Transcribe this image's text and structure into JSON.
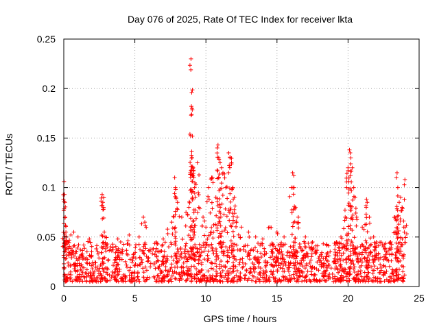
{
  "chart_data": {
    "type": "scatter",
    "title": "Day 076 of 2025, Rate Of TEC Index for receiver lkta",
    "xlabel": "GPS time / hours",
    "ylabel": "ROTI / TECUs",
    "xlim": [
      0,
      25
    ],
    "ylim": [
      0,
      0.25
    ],
    "x_ticks": [
      0,
      5,
      10,
      15,
      20,
      25
    ],
    "y_ticks": [
      0,
      0.05,
      0.1,
      0.15,
      0.2,
      0.25
    ],
    "x_tick_labels": [
      "0",
      "5",
      "10",
      "15",
      "20",
      "25"
    ],
    "y_tick_labels": [
      "0",
      "0.05",
      "0.1",
      "0.15",
      "0.2",
      "0.25"
    ],
    "grid": true,
    "marker": "+",
    "marker_color": "#ff0000",
    "series": [
      {
        "name": "ROTI",
        "points": [
          [
            0.02,
            0.106
          ],
          [
            0.05,
            0.093
          ],
          [
            0.08,
            0.085
          ],
          [
            0.1,
            0.07
          ],
          [
            0.12,
            0.062
          ],
          [
            0.15,
            0.055
          ],
          [
            0.2,
            0.05
          ],
          [
            0.3,
            0.045
          ],
          [
            0.5,
            0.052
          ],
          [
            0.7,
            0.055
          ],
          [
            1.0,
            0.05
          ],
          [
            1.4,
            0.042
          ],
          [
            1.8,
            0.048
          ],
          [
            2.7,
            0.093
          ],
          [
            2.75,
            0.085
          ],
          [
            2.8,
            0.08
          ],
          [
            2.85,
            0.055
          ],
          [
            2.9,
            0.05
          ],
          [
            3.8,
            0.048
          ],
          [
            4.0,
            0.045
          ],
          [
            4.6,
            0.052
          ],
          [
            5.3,
            0.05
          ],
          [
            5.6,
            0.07
          ],
          [
            5.7,
            0.065
          ],
          [
            6.5,
            0.045
          ],
          [
            7.0,
            0.048
          ],
          [
            7.3,
            0.058
          ],
          [
            7.6,
            0.065
          ],
          [
            7.8,
            0.11
          ],
          [
            7.85,
            0.1
          ],
          [
            7.9,
            0.09
          ],
          [
            8.0,
            0.085
          ],
          [
            8.3,
            0.07
          ],
          [
            8.6,
            0.075
          ],
          [
            8.8,
            0.08
          ],
          [
            8.9,
            0.115
          ],
          [
            8.95,
            0.23
          ],
          [
            9.0,
            0.196
          ],
          [
            9.02,
            0.18
          ],
          [
            9.05,
            0.152
          ],
          [
            9.1,
            0.12
          ],
          [
            9.15,
            0.11
          ],
          [
            9.2,
            0.1
          ],
          [
            9.25,
            0.09
          ],
          [
            9.4,
            0.125
          ],
          [
            9.5,
            0.08
          ],
          [
            9.8,
            0.07
          ],
          [
            10.0,
            0.06
          ],
          [
            10.2,
            0.1
          ],
          [
            10.4,
            0.11
          ],
          [
            10.5,
            0.105
          ],
          [
            10.7,
            0.09
          ],
          [
            10.8,
            0.14
          ],
          [
            10.85,
            0.143
          ],
          [
            10.9,
            0.13
          ],
          [
            11.0,
            0.125
          ],
          [
            11.1,
            0.12
          ],
          [
            11.2,
            0.115
          ],
          [
            11.4,
            0.1
          ],
          [
            11.6,
            0.135
          ],
          [
            11.7,
            0.13
          ],
          [
            11.8,
            0.125
          ],
          [
            11.9,
            0.1
          ],
          [
            12.0,
            0.09
          ],
          [
            12.2,
            0.07
          ],
          [
            12.5,
            0.06
          ],
          [
            13.0,
            0.055
          ],
          [
            13.5,
            0.05
          ],
          [
            14.0,
            0.048
          ],
          [
            14.5,
            0.06
          ],
          [
            15.0,
            0.055
          ],
          [
            15.5,
            0.05
          ],
          [
            16.0,
            0.1
          ],
          [
            16.1,
            0.115
          ],
          [
            16.2,
            0.1
          ],
          [
            16.3,
            0.08
          ],
          [
            16.5,
            0.07
          ],
          [
            17.0,
            0.05
          ],
          [
            17.5,
            0.045
          ],
          [
            18.5,
            0.042
          ],
          [
            19.2,
            0.045
          ],
          [
            19.5,
            0.05
          ],
          [
            19.8,
            0.07
          ],
          [
            19.9,
            0.1
          ],
          [
            20.0,
            0.12
          ],
          [
            20.1,
            0.138
          ],
          [
            20.15,
            0.135
          ],
          [
            20.2,
            0.13
          ],
          [
            20.3,
            0.12
          ],
          [
            20.4,
            0.1
          ],
          [
            20.5,
            0.09
          ],
          [
            20.6,
            0.07
          ],
          [
            21.0,
            0.06
          ],
          [
            21.3,
            0.088
          ],
          [
            21.35,
            0.085
          ],
          [
            21.5,
            0.07
          ],
          [
            21.8,
            0.05
          ],
          [
            22.0,
            0.045
          ],
          [
            22.5,
            0.04
          ],
          [
            23.0,
            0.045
          ],
          [
            23.3,
            0.07
          ],
          [
            23.4,
            0.11
          ],
          [
            23.45,
            0.115
          ],
          [
            23.5,
            0.1
          ],
          [
            23.6,
            0.085
          ],
          [
            23.7,
            0.09
          ],
          [
            23.8,
            0.08
          ],
          [
            24.0,
            0.108
          ],
          [
            24.02,
            0.06
          ]
        ],
        "baseline": {
          "x_range": [
            0,
            24
          ],
          "min": 0.005,
          "typical_max": 0.045,
          "note": "dense band of points between ~0.005 and ~0.045 across 0-24 h"
        }
      }
    ]
  }
}
